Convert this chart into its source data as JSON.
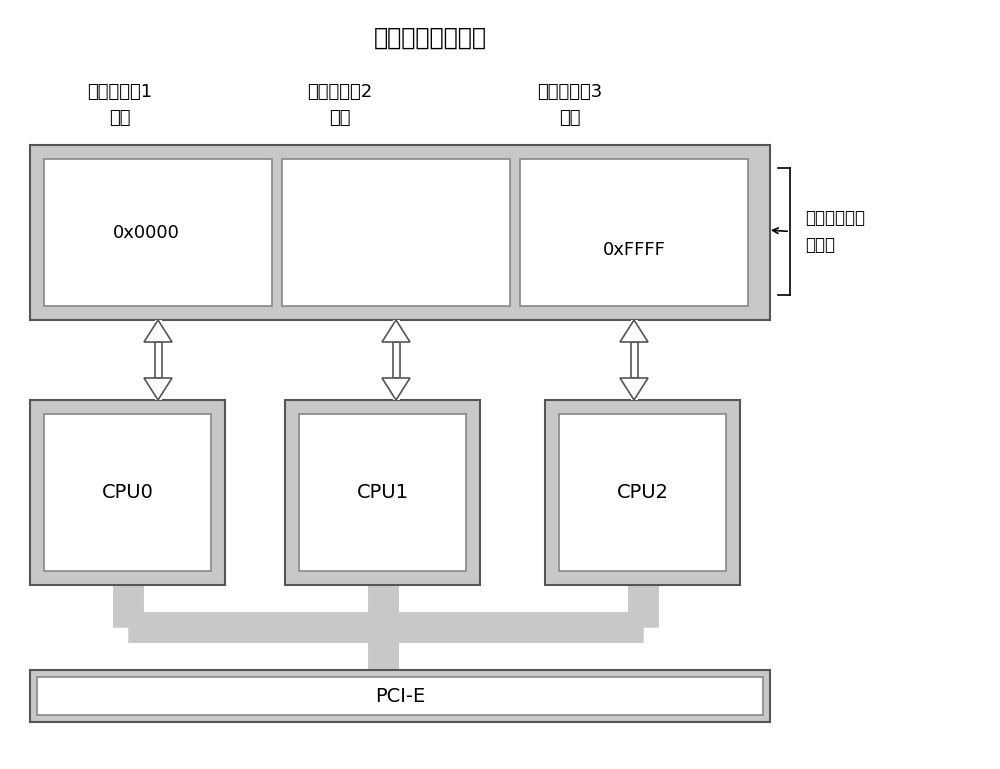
{
  "title": "单一内存空间地址",
  "title_fontsize": 17,
  "bg_color": "#ffffff",
  "outer_box_color": "#c8c8c8",
  "inner_box_color": "#ffffff",
  "edge_color": "#555555",
  "text_color": "#000000",
  "arrow_face": "#ffffff",
  "arrow_edge": "#555555",
  "conn_color": "#c8c8c8",
  "device_labels": [
    "计算机设备1\n内存",
    "计算机设备2\n内存",
    "计算机设备3\n内存"
  ],
  "cpu_labels": [
    "CPU0",
    "CPU1",
    "CPU2"
  ],
  "mem_label_0": "0x0000",
  "mem_label_2": "0xFFFF",
  "annotation_text": "共享虚拟内存\n寻址表",
  "pcie_label": "PCI-E"
}
